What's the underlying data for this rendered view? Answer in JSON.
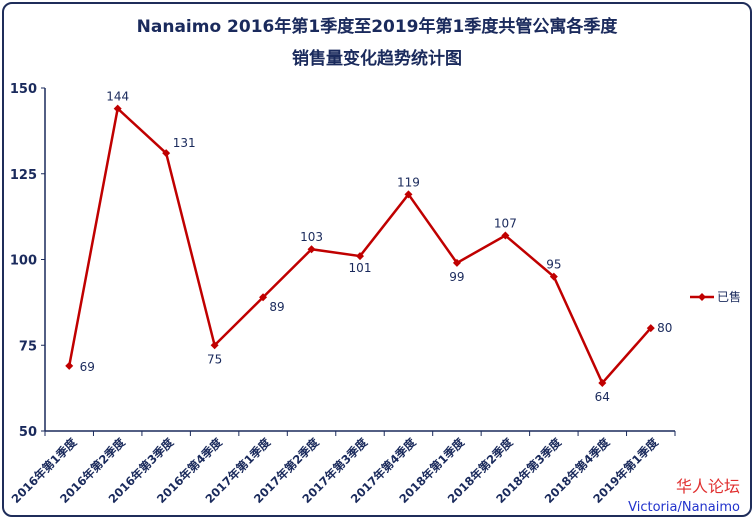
{
  "chart_data": {
    "type": "line",
    "title": "Nanaimo 2016年第1季度至2019年第1季度共管公寓各季度",
    "subtitle": "销售量变化趋势统计图",
    "categories": [
      "2016年第1季度",
      "2016年第2季度",
      "2016年第3季度",
      "2016年第4季度",
      "2017年第1季度",
      "2017年第2季度",
      "2017年第3季度",
      "2017年第4季度",
      "2018年第1季度",
      "2018年第2季度",
      "2018年第3季度",
      "2018年第4季度",
      "2019年第1季度"
    ],
    "series": [
      {
        "name": "已售",
        "values": [
          69,
          144,
          131,
          75,
          89,
          103,
          101,
          119,
          99,
          107,
          95,
          64,
          80
        ],
        "color": "#c00000"
      }
    ],
    "ylim": [
      50,
      150
    ],
    "yticks": [
      50,
      75,
      100,
      125,
      150
    ],
    "grid": false,
    "legend": "right"
  },
  "watermark": {
    "line1": "华人论坛",
    "line2": "Victoria/Nanaimo"
  }
}
